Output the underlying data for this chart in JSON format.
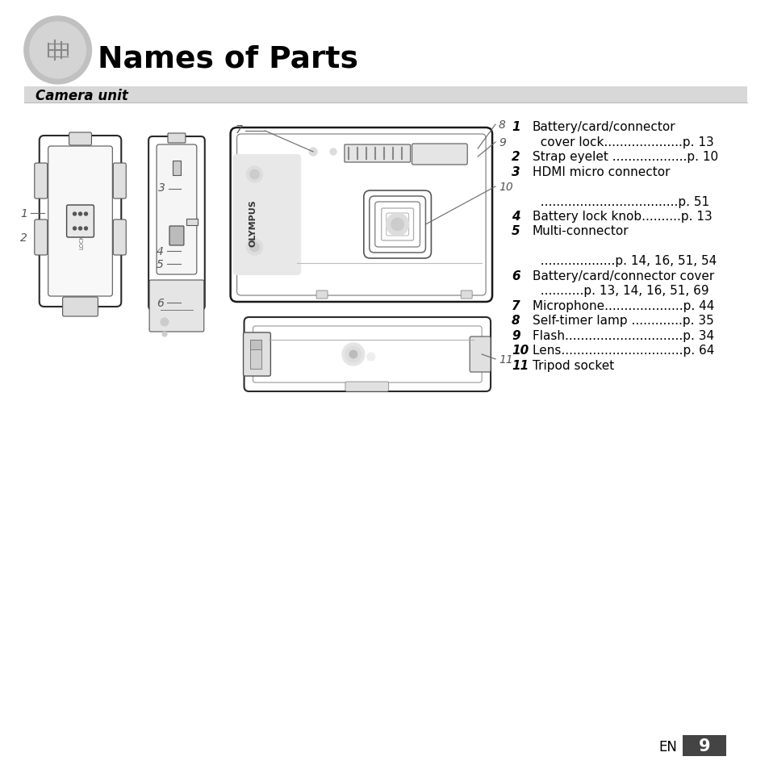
{
  "title": "Names of Parts",
  "subtitle": "Camera unit",
  "bg_color": "#ffffff",
  "title_color": "#000000",
  "subtitle_bg": "#d8d8d8",
  "page_number": "9",
  "line_items": [
    {
      "num": "1",
      "line1": "Battery/card/connector",
      "line2": "  cover lock....................p. 13"
    },
    {
      "num": "2",
      "line1": "Strap eyelet ...................p. 10",
      "line2": ""
    },
    {
      "num": "3",
      "line1": "HDMI micro connector",
      "line2": ""
    },
    {
      "num": "",
      "line1": "",
      "line2": ""
    },
    {
      "num": "",
      "line1": "  ...................................p. 51",
      "line2": ""
    },
    {
      "num": "4",
      "line1": "Battery lock knob..........p. 13",
      "line2": ""
    },
    {
      "num": "5",
      "line1": "Multi-connector",
      "line2": ""
    },
    {
      "num": "",
      "line1": "",
      "line2": ""
    },
    {
      "num": "",
      "line1": "  ...................p. 14, 16, 51, 54",
      "line2": ""
    },
    {
      "num": "6",
      "line1": "Battery/card/connector cover",
      "line2": "  ...........p. 13, 14, 16, 51, 69"
    },
    {
      "num": "7",
      "line1": "Microphone....................p. 44",
      "line2": ""
    },
    {
      "num": "8",
      "line1": "Self-timer lamp .............p. 35",
      "line2": ""
    },
    {
      "num": "9",
      "line1": "Flash..............................p. 34",
      "line2": ""
    },
    {
      "num": "10",
      "line1": "Lens...............................p. 64",
      "line2": ""
    },
    {
      "num": "11",
      "line1": "Tripod socket",
      "line2": ""
    }
  ]
}
